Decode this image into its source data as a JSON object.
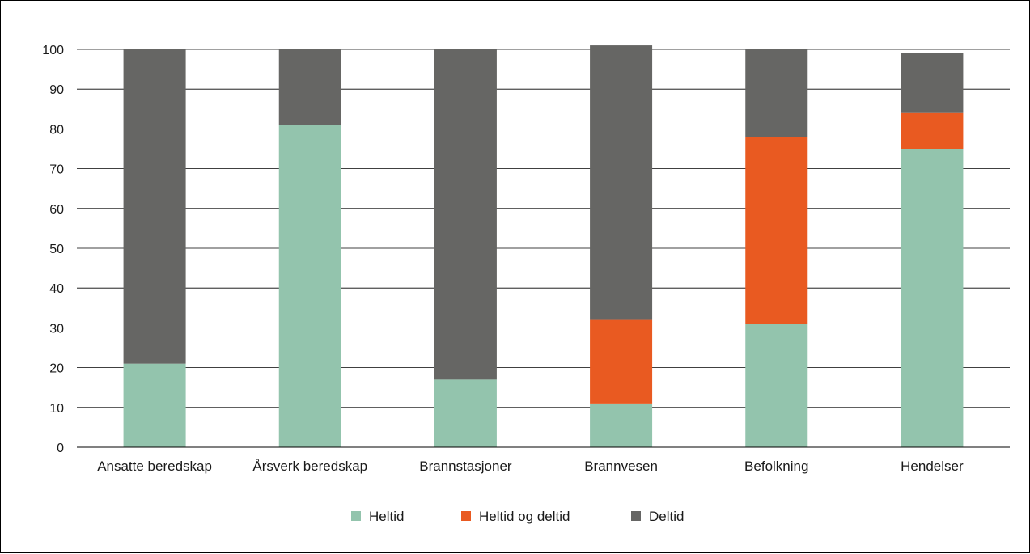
{
  "chart_data": {
    "type": "bar",
    "stacked": true,
    "categories": [
      "Ansatte beredskap",
      "Årsverk beredskap",
      "Brannstasjoner",
      "Brannvesen",
      "Befolkning",
      "Hendelser"
    ],
    "series": [
      {
        "name": "Heltid",
        "color": "#93c4ad",
        "values": [
          21,
          81,
          17,
          11,
          31,
          75
        ]
      },
      {
        "name": "Heltid og deltid",
        "color": "#e95a21",
        "values": [
          0,
          0,
          0,
          21,
          47,
          9
        ]
      },
      {
        "name": "Deltid",
        "color": "#666664",
        "values": [
          79,
          19,
          83,
          69,
          22,
          15
        ]
      }
    ],
    "yticks": [
      "0",
      "10",
      "20",
      "30",
      "40",
      "50",
      "60",
      "70",
      "80",
      "90",
      "100"
    ],
    "ylim": [
      0,
      100
    ],
    "grid": true,
    "legend_position": "bottom",
    "title": "",
    "xlabel": "",
    "ylabel": ""
  }
}
